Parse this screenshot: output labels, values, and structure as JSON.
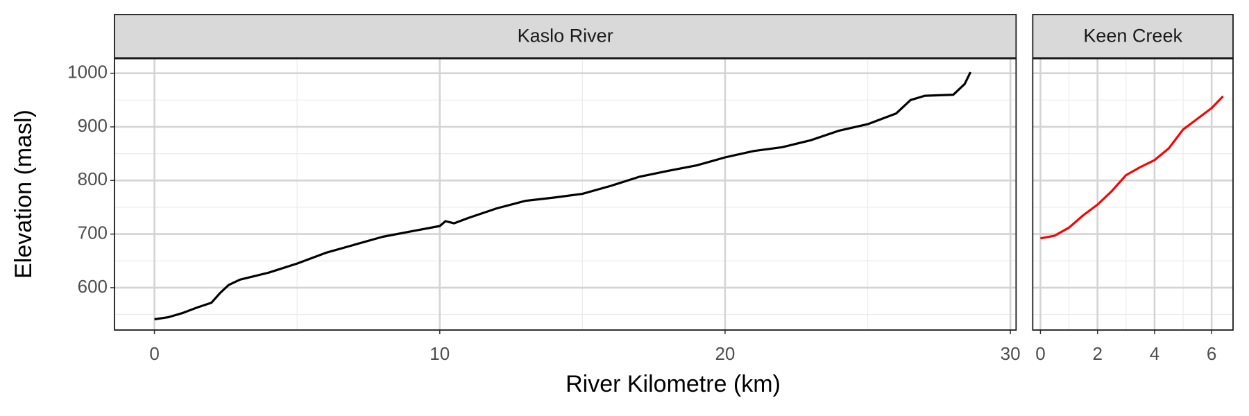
{
  "chart_data": [
    {
      "type": "line",
      "title": "Kaslo River",
      "ylabel": "Elevation (masl)",
      "xlabel": "River Kilometre (km)",
      "x": [
        0,
        0.5,
        1,
        1.5,
        2,
        2.3,
        2.6,
        3,
        4,
        5,
        6,
        7,
        8,
        9,
        10,
        10.2,
        10.5,
        11,
        12,
        13,
        14,
        15,
        16,
        17,
        18,
        19,
        20,
        21,
        22,
        23,
        24,
        25,
        26,
        26.5,
        27,
        28,
        28.4,
        28.6
      ],
      "series": [
        {
          "color": "#000000",
          "values": [
            541,
            545,
            553,
            563,
            572,
            590,
            605,
            615,
            628,
            645,
            665,
            680,
            695,
            705,
            715,
            724,
            720,
            730,
            748,
            762,
            768,
            775,
            790,
            807,
            818,
            828,
            843,
            855,
            862,
            875,
            893,
            905,
            925,
            950,
            958,
            960,
            980,
            1002
          ]
        }
      ],
      "xlim": [
        -1.4,
        30.2
      ],
      "xticks": [
        0,
        10,
        20,
        30
      ],
      "ylim": [
        521,
        1028
      ],
      "yticks": [
        600,
        700,
        800,
        900,
        1000
      ],
      "grid": true
    },
    {
      "type": "line",
      "title": "Keen Creek",
      "x": [
        0,
        0.5,
        1,
        1.5,
        2,
        2.5,
        3,
        3.5,
        4,
        4.5,
        5,
        5.5,
        6,
        6.4
      ],
      "series": [
        {
          "color": "#ff0000",
          "values": [
            692,
            697,
            712,
            735,
            755,
            780,
            810,
            825,
            838,
            860,
            895,
            915,
            935,
            957
          ]
        }
      ],
      "xlim": [
        -0.27,
        6.75
      ],
      "xticks": [
        0,
        2,
        4,
        6
      ],
      "ylim": [
        521,
        1028
      ],
      "yticks": [
        600,
        700,
        800,
        900,
        1000
      ],
      "grid": true
    }
  ]
}
